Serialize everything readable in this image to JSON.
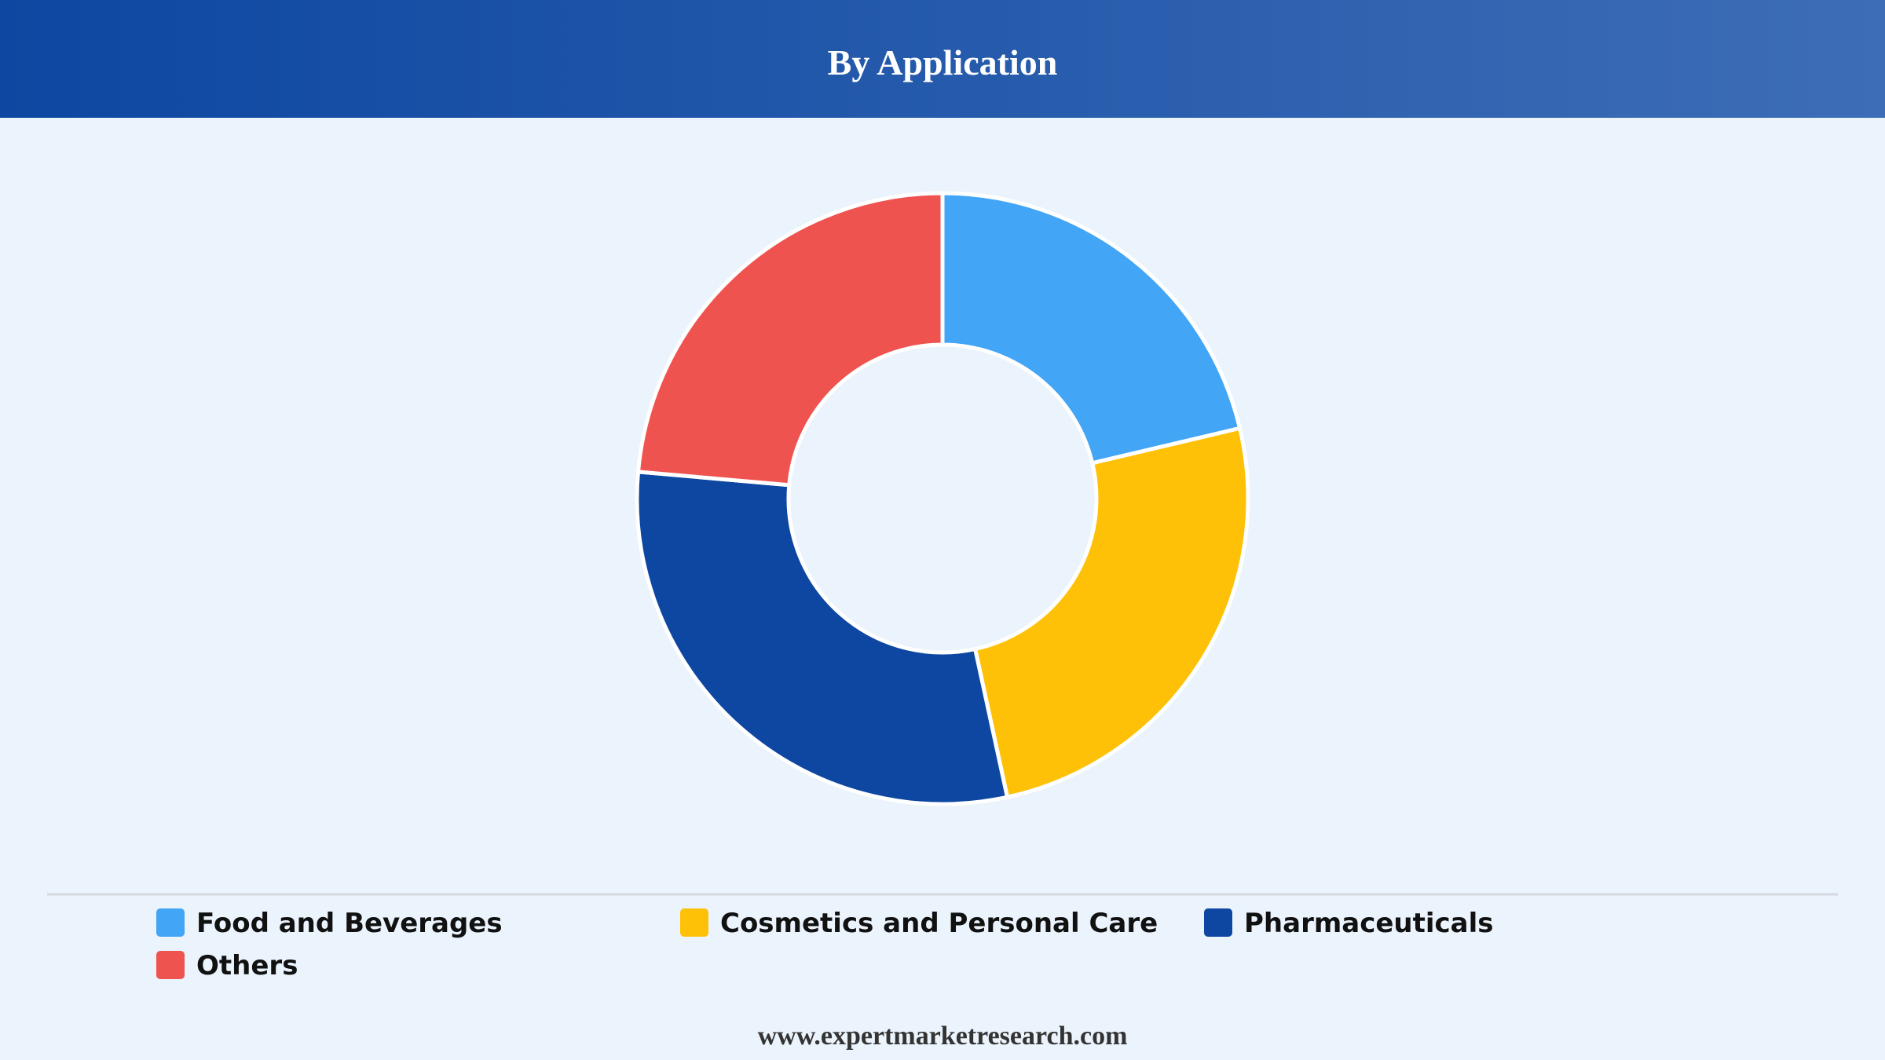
{
  "chart_data": {
    "type": "donut",
    "title": "By Application",
    "categories": [
      "Food and Beverages",
      "Cosmetics and Personal Care",
      "Pharmaceuticals",
      "Others"
    ],
    "values": [
      21.3,
      25.3,
      29.8,
      23.6
    ],
    "colors": [
      "#42a5f5",
      "#ffc107",
      "#0d47a1",
      "#ef5350"
    ]
  },
  "footer": "www.expertmarketresearch.com"
}
